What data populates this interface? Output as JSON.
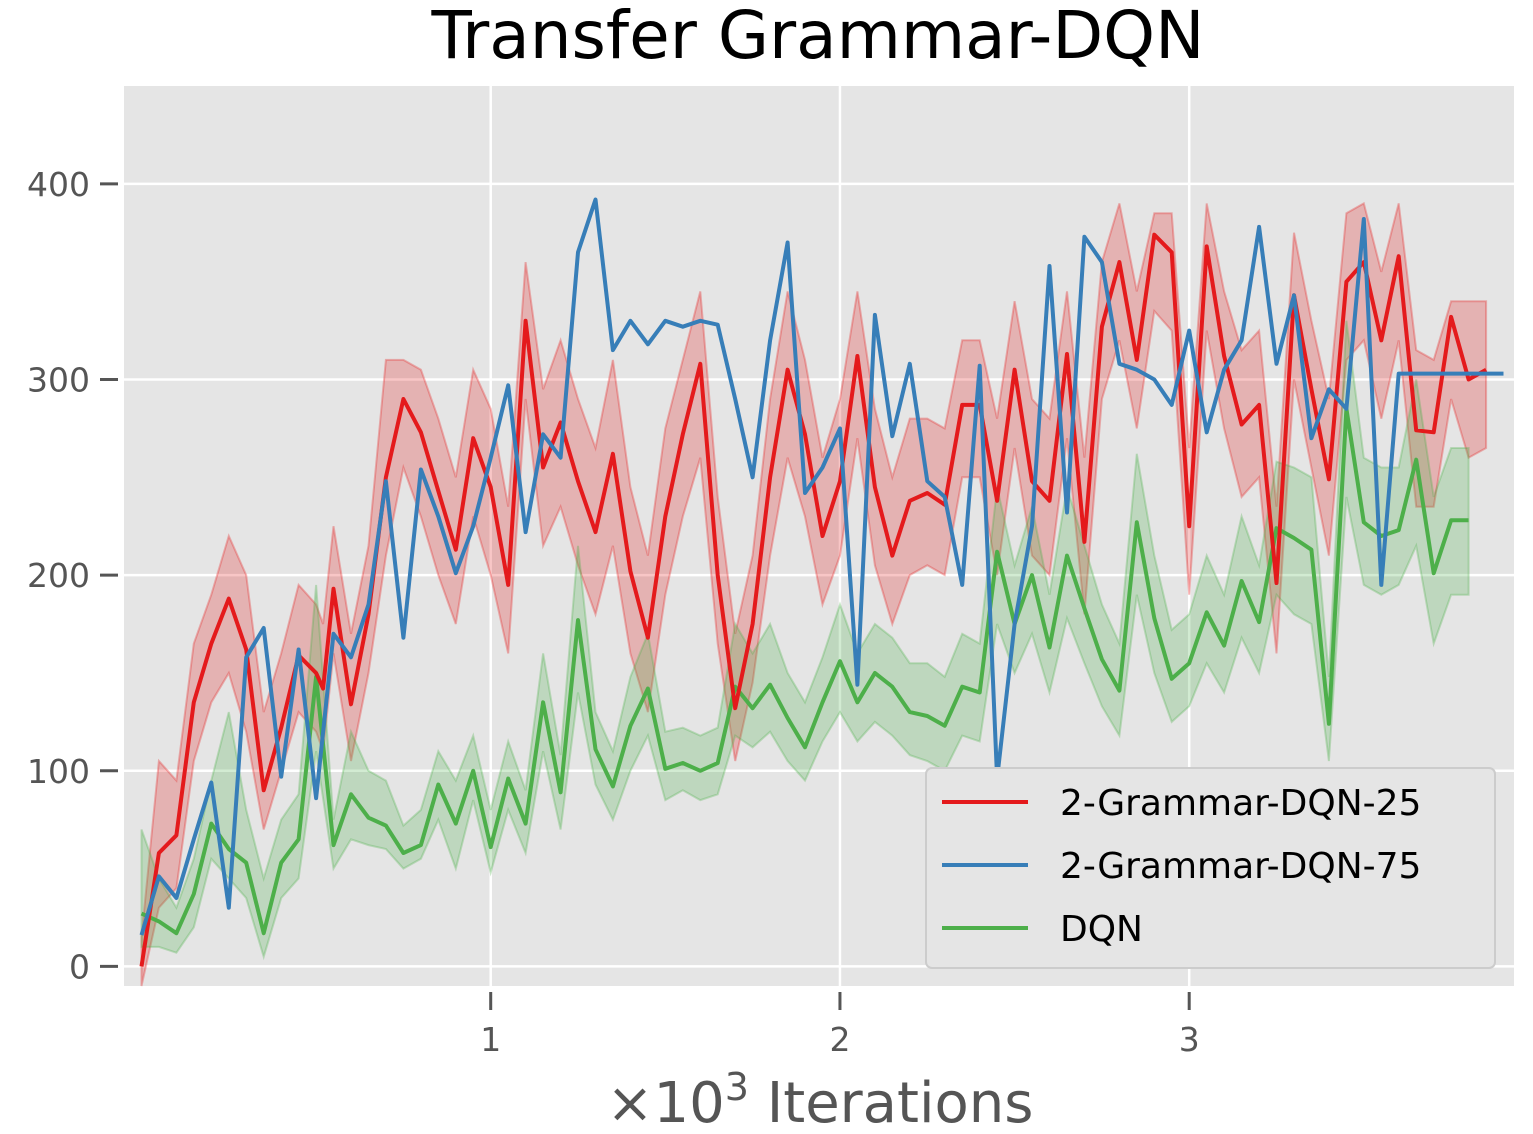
{
  "chart_data": {
    "type": "line",
    "title": "Transfer Grammar-DQN",
    "xlabel_prefix": "×10",
    "xlabel_exp": "3",
    "xlabel_suffix": " Iterations",
    "ylabel": "",
    "xlim": [
      -0.05,
      3.93
    ],
    "ylim": [
      -10,
      450
    ],
    "xticks": [
      1,
      2,
      3
    ],
    "xtick_labels": [
      "1",
      "2",
      "3"
    ],
    "yticks": [
      0,
      100,
      200,
      300,
      400
    ],
    "ytick_labels": [
      "0",
      "100",
      "200",
      "300",
      "400"
    ],
    "grid": true,
    "legend_position": "lower-right",
    "colors": {
      "plot_bg": "#e5e5e5",
      "grid": "#ffffff",
      "tick": "#555555"
    },
    "series": [
      {
        "name": "2-Grammar-DQN-25",
        "color": "#e41a1c",
        "band": true,
        "x": [
          0,
          0.05,
          0.1,
          0.15,
          0.2,
          0.25,
          0.3,
          0.35,
          0.4,
          0.45,
          0.5,
          0.52,
          0.55,
          0.6,
          0.65,
          0.7,
          0.75,
          0.8,
          0.85,
          0.9,
          0.95,
          1.0,
          1.05,
          1.1,
          1.15,
          1.2,
          1.25,
          1.3,
          1.35,
          1.4,
          1.45,
          1.5,
          1.55,
          1.6,
          1.65,
          1.7,
          1.75,
          1.8,
          1.85,
          1.9,
          1.95,
          2.0,
          2.05,
          2.1,
          2.15,
          2.2,
          2.25,
          2.3,
          2.35,
          2.4,
          2.45,
          2.5,
          2.55,
          2.6,
          2.65,
          2.7,
          2.75,
          2.8,
          2.85,
          2.9,
          2.95,
          3.0,
          3.05,
          3.1,
          3.15,
          3.2,
          3.25,
          3.3,
          3.35,
          3.4,
          3.45,
          3.5,
          3.55,
          3.6,
          3.65,
          3.7,
          3.75,
          3.8,
          3.85
        ],
        "y": [
          0,
          58,
          67,
          135,
          165,
          188,
          162,
          90,
          122,
          159,
          150,
          142,
          193,
          134,
          180,
          250,
          290,
          273,
          243,
          213,
          270,
          245,
          195,
          330,
          255,
          278,
          248,
          222,
          262,
          202,
          168,
          230,
          272,
          308,
          200,
          132,
          175,
          250,
          305,
          272,
          220,
          248,
          312,
          245,
          210,
          238,
          242,
          236,
          287,
          287,
          238,
          305,
          248,
          238,
          313,
          217,
          327,
          360,
          310,
          374,
          365,
          225,
          368,
          312,
          277,
          287,
          196,
          343,
          295,
          249,
          350,
          360,
          320,
          363,
          274,
          273,
          332,
          300,
          305
        ],
        "y_low": [
          -10,
          30,
          40,
          105,
          135,
          150,
          120,
          70,
          100,
          130,
          120,
          110,
          160,
          105,
          150,
          210,
          255,
          230,
          200,
          175,
          230,
          200,
          160,
          290,
          215,
          235,
          205,
          180,
          215,
          160,
          130,
          190,
          230,
          260,
          165,
          105,
          145,
          210,
          260,
          230,
          185,
          210,
          270,
          205,
          175,
          200,
          205,
          200,
          250,
          250,
          200,
          265,
          210,
          200,
          270,
          180,
          290,
          320,
          275,
          335,
          325,
          190,
          325,
          275,
          240,
          250,
          160,
          300,
          255,
          210,
          310,
          320,
          280,
          320,
          235,
          235,
          290,
          260,
          265
        ],
        "y_high": [
          15,
          105,
          95,
          165,
          190,
          220,
          200,
          130,
          160,
          195,
          185,
          175,
          225,
          170,
          215,
          310,
          310,
          305,
          280,
          250,
          305,
          285,
          235,
          360,
          295,
          320,
          290,
          265,
          310,
          245,
          210,
          275,
          310,
          345,
          240,
          170,
          210,
          290,
          345,
          310,
          260,
          290,
          345,
          285,
          250,
          280,
          280,
          275,
          320,
          320,
          280,
          340,
          290,
          280,
          345,
          260,
          360,
          390,
          345,
          385,
          385,
          265,
          390,
          345,
          315,
          325,
          235,
          375,
          330,
          290,
          385,
          390,
          355,
          390,
          315,
          310,
          340,
          340,
          340
        ]
      },
      {
        "name": "2-Grammar-DQN-75",
        "color": "#377eb8",
        "band": false,
        "x": [
          0,
          0.05,
          0.1,
          0.15,
          0.2,
          0.25,
          0.3,
          0.35,
          0.4,
          0.45,
          0.5,
          0.55,
          0.6,
          0.65,
          0.7,
          0.75,
          0.8,
          0.85,
          0.9,
          0.95,
          1.0,
          1.05,
          1.1,
          1.15,
          1.2,
          1.25,
          1.3,
          1.35,
          1.4,
          1.45,
          1.5,
          1.55,
          1.6,
          1.65,
          1.7,
          1.75,
          1.8,
          1.85,
          1.9,
          1.95,
          2.0,
          2.05,
          2.1,
          2.15,
          2.2,
          2.25,
          2.3,
          2.35,
          2.4,
          2.45,
          2.5,
          2.55,
          2.6,
          2.65,
          2.7,
          2.75,
          2.8,
          2.85,
          2.9,
          2.95,
          3.0,
          3.05,
          3.1,
          3.15,
          3.2,
          3.25,
          3.3,
          3.35,
          3.4,
          3.45,
          3.5,
          3.55,
          3.6,
          3.65,
          3.7,
          3.75,
          3.8,
          3.85,
          3.9
        ],
        "y": [
          16,
          46,
          35,
          65,
          94,
          30,
          158,
          173,
          97,
          162,
          86,
          170,
          158,
          185,
          248,
          168,
          254,
          230,
          201,
          225,
          260,
          297,
          222,
          272,
          260,
          365,
          392,
          315,
          330,
          318,
          330,
          327,
          330,
          328,
          290,
          250,
          320,
          370,
          242,
          255,
          275,
          144,
          333,
          271,
          308,
          248,
          240,
          195,
          307,
          96,
          175,
          225,
          358,
          232,
          373,
          360,
          308,
          305,
          300,
          287,
          325,
          273,
          305,
          320,
          378,
          308,
          343,
          270,
          295,
          285,
          382,
          195,
          303,
          303,
          303,
          303,
          303,
          303,
          303
        ]
      },
      {
        "name": "DQN",
        "color": "#4daf4a",
        "band": true,
        "x": [
          0,
          0.05,
          0.1,
          0.15,
          0.2,
          0.25,
          0.3,
          0.35,
          0.4,
          0.45,
          0.5,
          0.55,
          0.6,
          0.65,
          0.7,
          0.75,
          0.8,
          0.85,
          0.9,
          0.95,
          1.0,
          1.05,
          1.1,
          1.15,
          1.2,
          1.25,
          1.3,
          1.35,
          1.4,
          1.45,
          1.5,
          1.55,
          1.6,
          1.65,
          1.7,
          1.75,
          1.8,
          1.85,
          1.9,
          1.95,
          2.0,
          2.05,
          2.1,
          2.15,
          2.2,
          2.25,
          2.3,
          2.35,
          2.4,
          2.45,
          2.5,
          2.55,
          2.6,
          2.65,
          2.7,
          2.75,
          2.8,
          2.85,
          2.9,
          2.95,
          3.0,
          3.05,
          3.1,
          3.15,
          3.2,
          3.25,
          3.3,
          3.35,
          3.4,
          3.45,
          3.5,
          3.55,
          3.6,
          3.65,
          3.7,
          3.75,
          3.8
        ],
        "y": [
          27,
          23,
          17,
          37,
          73,
          60,
          53,
          17,
          53,
          65,
          148,
          62,
          88,
          76,
          72,
          58,
          62,
          93,
          73,
          100,
          61,
          96,
          73,
          135,
          89,
          177,
          111,
          92,
          123,
          142,
          101,
          104,
          100,
          104,
          143,
          132,
          144,
          127,
          112,
          135,
          156,
          135,
          150,
          143,
          130,
          128,
          123,
          143,
          140,
          212,
          175,
          200,
          163,
          210,
          183,
          157,
          141,
          227,
          178,
          147,
          155,
          181,
          164,
          197,
          176,
          224,
          219,
          213,
          124,
          285,
          227,
          220,
          223,
          259,
          201,
          228,
          228
        ],
        "y_low": [
          10,
          10,
          7,
          20,
          55,
          45,
          35,
          5,
          35,
          45,
          110,
          50,
          65,
          62,
          60,
          50,
          55,
          75,
          50,
          85,
          48,
          80,
          58,
          110,
          70,
          140,
          93,
          75,
          100,
          118,
          85,
          90,
          85,
          88,
          118,
          112,
          120,
          105,
          95,
          115,
          130,
          115,
          125,
          118,
          108,
          105,
          100,
          118,
          115,
          175,
          150,
          170,
          140,
          178,
          155,
          133,
          118,
          190,
          150,
          125,
          133,
          155,
          140,
          168,
          150,
          190,
          180,
          175,
          105,
          240,
          195,
          190,
          195,
          215,
          165,
          190,
          190
        ],
        "y_high": [
          70,
          45,
          30,
          55,
          95,
          130,
          80,
          45,
          75,
          88,
          195,
          75,
          120,
          100,
          95,
          72,
          80,
          110,
          95,
          118,
          80,
          115,
          90,
          160,
          108,
          215,
          130,
          110,
          148,
          170,
          120,
          122,
          118,
          122,
          175,
          160,
          175,
          150,
          135,
          158,
          185,
          160,
          175,
          168,
          155,
          155,
          148,
          170,
          165,
          245,
          205,
          235,
          190,
          245,
          215,
          185,
          165,
          262,
          210,
          172,
          180,
          210,
          190,
          230,
          205,
          258,
          255,
          250,
          148,
          330,
          260,
          255,
          255,
          300,
          240,
          265,
          265
        ]
      }
    ]
  }
}
